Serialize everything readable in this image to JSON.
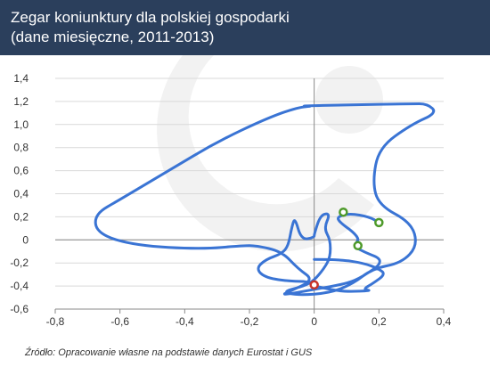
{
  "header": {
    "title_line1": "Zegar koniunktury dla polskiej gospodarki",
    "title_line2": "(dane miesięczne, 2011-2013)"
  },
  "source_note": "Źródło: Opracowanie własne na podstawie danych Eurostat i GUS",
  "colors": {
    "header_bg": "#2b3f5c",
    "line": "#3a74d4",
    "marker_green": "#4e9a2a",
    "marker_red": "#c8352a",
    "grid": "#d9d9d9",
    "axis": "#888888"
  },
  "chart_data": {
    "type": "line",
    "title": "Zegar koniunktury dla polskiej gospodarki (dane miesięczne, 2011-2013)",
    "xlabel": "",
    "ylabel": "",
    "xlim": [
      -0.8,
      0.4
    ],
    "ylim": [
      -0.6,
      1.4
    ],
    "xticks": [
      -0.8,
      -0.6,
      -0.4,
      -0.2,
      0,
      0.2,
      0.4
    ],
    "xtick_labels": [
      "-0,8",
      "-0,6",
      "-0,4",
      "-0,2",
      "0",
      "0,2",
      "0,4"
    ],
    "yticks": [
      -0.6,
      -0.4,
      -0.2,
      0,
      0.2,
      0.4,
      0.6,
      0.8,
      1.0,
      1.2,
      1.4
    ],
    "ytick_labels": [
      "-0,6",
      "-0,4",
      "-0,2",
      "0",
      "0,2",
      "0,4",
      "0,6",
      "0,8",
      "1,0",
      "1,2",
      "1,4"
    ],
    "grid": "horizontal",
    "legend": "none",
    "series": [
      {
        "points": [
          [
            0.0,
            -0.17
          ],
          [
            0.08,
            -0.17
          ],
          [
            0.15,
            -0.2
          ],
          [
            0.2,
            -0.25
          ],
          [
            0.22,
            -0.3
          ],
          [
            0.18,
            -0.38
          ],
          [
            0.15,
            -0.43
          ],
          [
            0.18,
            -0.44
          ],
          [
            0.1,
            -0.45
          ],
          [
            0.05,
            -0.43
          ],
          [
            0.0,
            -0.4
          ],
          [
            -0.02,
            -0.36
          ],
          [
            -0.07,
            -0.36
          ],
          [
            -0.15,
            -0.33
          ],
          [
            -0.18,
            -0.25
          ],
          [
            -0.15,
            -0.17
          ],
          [
            -0.1,
            -0.12
          ],
          [
            -0.08,
            -0.05
          ],
          [
            -0.07,
            0.1
          ],
          [
            -0.06,
            0.2
          ],
          [
            -0.04,
            0.0
          ],
          [
            0.0,
            0.02
          ],
          [
            0.0,
            0.05
          ],
          [
            0.02,
            0.22
          ],
          [
            0.05,
            0.23
          ],
          [
            0.03,
            0.1
          ],
          [
            0.05,
            0.0
          ],
          [
            0.05,
            -0.15
          ],
          [
            0.03,
            -0.25
          ],
          [
            0.0,
            -0.35
          ],
          [
            -0.03,
            -0.4
          ],
          [
            -0.1,
            -0.45
          ],
          [
            -0.05,
            -0.48
          ],
          [
            0.05,
            -0.46
          ],
          [
            0.12,
            -0.38
          ],
          [
            0.18,
            -0.25
          ],
          [
            0.27,
            -0.2
          ],
          [
            0.32,
            -0.05
          ],
          [
            0.3,
            0.15
          ],
          [
            0.2,
            0.3
          ],
          [
            0.18,
            0.5
          ],
          [
            0.2,
            0.8
          ],
          [
            0.3,
            1.0
          ],
          [
            0.38,
            1.1
          ],
          [
            0.35,
            1.18
          ],
          [
            0.3,
            1.18
          ],
          [
            0.1,
            1.17
          ],
          [
            -0.05,
            1.16
          ],
          [
            0.0,
            1.16
          ],
          [
            -0.05,
            1.15
          ],
          [
            -0.15,
            1.05
          ],
          [
            -0.3,
            0.85
          ],
          [
            -0.45,
            0.6
          ],
          [
            -0.6,
            0.35
          ],
          [
            -0.68,
            0.22
          ],
          [
            -0.67,
            0.05
          ],
          [
            -0.55,
            -0.05
          ],
          [
            -0.35,
            -0.08
          ],
          [
            -0.22,
            -0.05
          ],
          [
            -0.18,
            -0.05
          ],
          [
            -0.1,
            -0.1
          ],
          [
            -0.05,
            -0.25
          ],
          [
            0.0,
            -0.35
          ],
          [
            -0.08,
            -0.45
          ],
          [
            -0.1,
            -0.48
          ],
          [
            0.0,
            -0.43
          ],
          [
            0.1,
            -0.38
          ],
          [
            0.15,
            -0.32
          ],
          [
            0.22,
            -0.18
          ],
          [
            0.15,
            -0.1
          ],
          [
            0.12,
            -0.05
          ],
          [
            0.14,
            0.0
          ],
          [
            0.12,
            0.07
          ],
          [
            0.08,
            0.15
          ],
          [
            0.07,
            0.2
          ],
          [
            0.11,
            0.23
          ],
          [
            0.17,
            0.2
          ],
          [
            0.2,
            0.15
          ]
        ]
      }
    ],
    "markers": [
      {
        "x": 0.09,
        "y": 0.24,
        "color": "green"
      },
      {
        "x": 0.2,
        "y": 0.15,
        "color": "green"
      },
      {
        "x": 0.135,
        "y": -0.05,
        "color": "green"
      },
      {
        "x": 0.0,
        "y": -0.39,
        "color": "red"
      }
    ]
  }
}
